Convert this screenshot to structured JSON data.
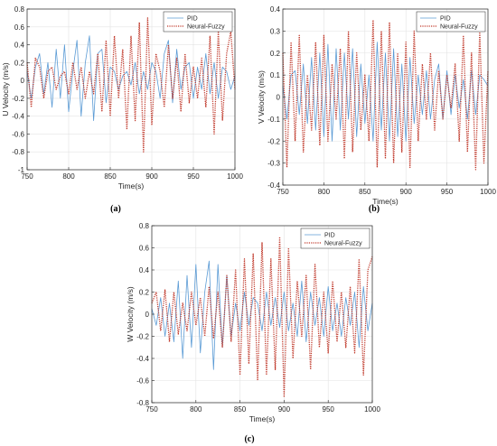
{
  "chart_data": [
    {
      "type": "line",
      "caption": "(a)",
      "xlabel": "Time(s)",
      "ylabel": "U Velocity (m/s)",
      "xlim": [
        750,
        1000
      ],
      "ylim": [
        -1,
        0.8
      ],
      "xticks": [
        750,
        800,
        850,
        900,
        950,
        1000
      ],
      "yticks": [
        -1,
        -0.8,
        -0.6,
        -0.4,
        -0.2,
        0,
        0.2,
        0.4,
        0.6,
        0.8
      ],
      "grid": true,
      "legend": "top-right",
      "series": [
        {
          "name": "PID",
          "color": "#5b9bd5",
          "style": "solid",
          "x": [
            750,
            755,
            760,
            765,
            770,
            775,
            780,
            785,
            790,
            795,
            800,
            805,
            810,
            815,
            820,
            825,
            830,
            835,
            840,
            845,
            850,
            855,
            860,
            865,
            870,
            875,
            880,
            885,
            890,
            895,
            900,
            905,
            910,
            915,
            920,
            925,
            930,
            935,
            940,
            945,
            950,
            955,
            960,
            965,
            970,
            975,
            980,
            985,
            990,
            995,
            1000
          ],
          "y": [
            0.1,
            -0.2,
            0.15,
            0.3,
            -0.15,
            0.2,
            -0.3,
            0.35,
            -0.2,
            0.4,
            -0.35,
            0.1,
            0.45,
            -0.4,
            0.2,
            0.5,
            -0.45,
            0.3,
            0.35,
            -0.25,
            0.15,
            0.1,
            -0.1,
            0.05,
            0.1,
            -0.05,
            0.2,
            -0.15,
            0.1,
            -0.1,
            0.2,
            0.1,
            -0.2,
            0.3,
            0.45,
            -0.25,
            0.35,
            -0.1,
            0.15,
            0.2,
            -0.2,
            0.15,
            -0.1,
            0.3,
            -0.15,
            0.2,
            -0.2,
            0.15,
            0.1,
            -0.1,
            0.05
          ]
        },
        {
          "name": "Neural-Fuzzy",
          "color": "#c0392b",
          "style": "dotted",
          "x": [
            750,
            755,
            760,
            765,
            770,
            775,
            780,
            785,
            790,
            795,
            800,
            805,
            810,
            815,
            820,
            825,
            830,
            835,
            840,
            845,
            850,
            855,
            860,
            865,
            870,
            875,
            880,
            885,
            890,
            895,
            900,
            905,
            910,
            915,
            920,
            925,
            930,
            935,
            940,
            945,
            950,
            955,
            960,
            965,
            970,
            975,
            980,
            985,
            990,
            995,
            1000
          ],
          "y": [
            0.2,
            -0.3,
            0.25,
            0.15,
            -0.2,
            0.1,
            0.15,
            -0.1,
            0.05,
            0.1,
            -0.15,
            0.2,
            -0.1,
            0.15,
            -0.2,
            0.1,
            -0.15,
            0.3,
            -0.35,
            0.45,
            -0.4,
            0.5,
            -0.2,
            0.35,
            -0.55,
            0.5,
            -0.45,
            0.65,
            -0.8,
            0.7,
            -0.5,
            0.3,
            0.1,
            -0.3,
            0.4,
            -0.2,
            0.25,
            -0.35,
            0.3,
            -0.25,
            0.15,
            -0.2,
            0.25,
            -0.3,
            0.5,
            -0.6,
            0.55,
            -0.45,
            0.3,
            0.55,
            -0.1
          ]
        }
      ]
    },
    {
      "type": "line",
      "caption": "(b)",
      "xlabel": "Time(s)",
      "ylabel": "V Velocity (m/s)",
      "xlim": [
        750,
        1000
      ],
      "ylim": [
        -0.4,
        0.4
      ],
      "xticks": [
        750,
        800,
        850,
        900,
        950,
        1000
      ],
      "yticks": [
        -0.4,
        -0.3,
        -0.2,
        -0.1,
        0,
        0.1,
        0.2,
        0.3,
        0.4
      ],
      "grid": true,
      "legend": "top-right",
      "series": [
        {
          "name": "PID",
          "color": "#5b9bd5",
          "style": "solid",
          "x": [
            750,
            755,
            760,
            765,
            770,
            775,
            780,
            785,
            790,
            795,
            800,
            805,
            810,
            815,
            820,
            825,
            830,
            835,
            840,
            845,
            850,
            855,
            860,
            865,
            870,
            875,
            880,
            885,
            890,
            895,
            900,
            905,
            910,
            915,
            920,
            925,
            930,
            935,
            940,
            945,
            950,
            955,
            960,
            965,
            970,
            975,
            980,
            985,
            990,
            995,
            1000
          ],
          "y": [
            0.05,
            -0.1,
            0.1,
            0.12,
            -0.08,
            0.15,
            -0.12,
            0.18,
            -0.15,
            0.2,
            -0.18,
            0.24,
            -0.2,
            0.22,
            -0.15,
            0.2,
            -0.1,
            0.22,
            -0.18,
            0.15,
            -0.12,
            0.1,
            -0.2,
            0.25,
            -0.15,
            0.2,
            -0.2,
            0.22,
            -0.18,
            0.15,
            -0.2,
            0.18,
            -0.12,
            0.1,
            -0.08,
            0.12,
            -0.1,
            0.08,
            0.15,
            -0.1,
            0.12,
            -0.08,
            0.1,
            -0.05,
            0.08,
            -0.1,
            0.12,
            -0.08,
            0.1,
            0.08,
            0.05
          ]
        },
        {
          "name": "Neural-Fuzzy",
          "color": "#c0392b",
          "style": "dotted",
          "x": [
            750,
            755,
            760,
            765,
            770,
            775,
            780,
            785,
            790,
            795,
            800,
            805,
            810,
            815,
            820,
            825,
            830,
            835,
            840,
            845,
            850,
            855,
            860,
            865,
            870,
            875,
            880,
            885,
            890,
            895,
            900,
            905,
            910,
            915,
            920,
            925,
            930,
            935,
            940,
            945,
            950,
            955,
            960,
            965,
            970,
            975,
            980,
            985,
            990,
            995,
            1000
          ],
          "y": [
            0.2,
            -0.32,
            0.25,
            -0.2,
            0.28,
            -0.25,
            0.1,
            -0.15,
            0.25,
            -0.22,
            0.28,
            -0.2,
            0.15,
            -0.1,
            0.22,
            -0.28,
            0.3,
            -0.25,
            0.2,
            -0.15,
            0.1,
            -0.2,
            0.35,
            -0.32,
            0.3,
            -0.28,
            0.34,
            -0.3,
            0.2,
            -0.25,
            0.25,
            -0.32,
            0.3,
            -0.2,
            0.15,
            -0.1,
            0.2,
            -0.15,
            0.12,
            -0.1,
            0.1,
            -0.05,
            0.15,
            -0.2,
            0.28,
            -0.25,
            0.2,
            -0.33,
            0.3,
            -0.3,
            0.12
          ]
        }
      ]
    },
    {
      "type": "line",
      "caption": "(c)",
      "xlabel": "Time(s)",
      "ylabel": "W Velocity (m/s)",
      "xlim": [
        750,
        1000
      ],
      "ylim": [
        -0.8,
        0.8
      ],
      "xticks": [
        750,
        800,
        850,
        900,
        950,
        1000
      ],
      "yticks": [
        -0.8,
        -0.6,
        -0.4,
        -0.2,
        0,
        0.2,
        0.4,
        0.6,
        0.8
      ],
      "grid": true,
      "legend": "top-right",
      "series": [
        {
          "name": "PID",
          "color": "#5b9bd5",
          "style": "solid",
          "x": [
            750,
            755,
            760,
            765,
            770,
            775,
            780,
            785,
            790,
            795,
            800,
            805,
            810,
            815,
            820,
            825,
            830,
            835,
            840,
            845,
            850,
            855,
            860,
            865,
            870,
            875,
            880,
            885,
            890,
            895,
            900,
            905,
            910,
            915,
            920,
            925,
            930,
            935,
            940,
            945,
            950,
            955,
            960,
            965,
            970,
            975,
            980,
            985,
            990,
            995,
            1000
          ],
          "y": [
            0.05,
            -0.1,
            0.15,
            -0.2,
            0.1,
            -0.25,
            0.3,
            -0.4,
            0.35,
            -0.3,
            0.45,
            -0.35,
            0.2,
            0.48,
            -0.5,
            0.45,
            -0.3,
            0.35,
            -0.2,
            0.1,
            -0.15,
            0.2,
            -0.1,
            0.15,
            0.1,
            -0.15,
            0.2,
            -0.1,
            0.15,
            -0.12,
            0.2,
            -0.15,
            0.1,
            -0.2,
            0.3,
            -0.25,
            0.2,
            -0.1,
            0.15,
            -0.2,
            0.25,
            -0.15,
            0.1,
            -0.2,
            0.15,
            -0.1,
            0.2,
            -0.3,
            0.25,
            -0.15,
            0.1
          ]
        },
        {
          "name": "Neural-Fuzzy",
          "color": "#c0392b",
          "style": "dotted",
          "x": [
            750,
            755,
            760,
            765,
            770,
            775,
            780,
            785,
            790,
            795,
            800,
            805,
            810,
            815,
            820,
            825,
            830,
            835,
            840,
            845,
            850,
            855,
            860,
            865,
            870,
            875,
            880,
            885,
            890,
            895,
            900,
            905,
            910,
            915,
            920,
            925,
            930,
            935,
            940,
            945,
            950,
            955,
            960,
            965,
            970,
            975,
            980,
            985,
            990,
            995,
            1000
          ],
          "y": [
            0.1,
            0.2,
            -0.15,
            0.22,
            -0.25,
            0.2,
            -0.18,
            0.1,
            -0.15,
            0.2,
            -0.1,
            0.15,
            -0.2,
            0.25,
            -0.22,
            0.2,
            -0.3,
            0.35,
            -0.25,
            0.4,
            -0.55,
            0.5,
            -0.45,
            0.55,
            -0.6,
            0.65,
            -0.55,
            0.5,
            -0.5,
            0.7,
            -0.75,
            0.6,
            -0.4,
            0.3,
            -0.2,
            0.35,
            -0.5,
            0.45,
            -0.3,
            0.2,
            -0.35,
            0.3,
            -0.25,
            0.2,
            -0.3,
            0.25,
            -0.35,
            0.5,
            -0.55,
            0.4,
            0.52
          ]
        }
      ]
    }
  ]
}
